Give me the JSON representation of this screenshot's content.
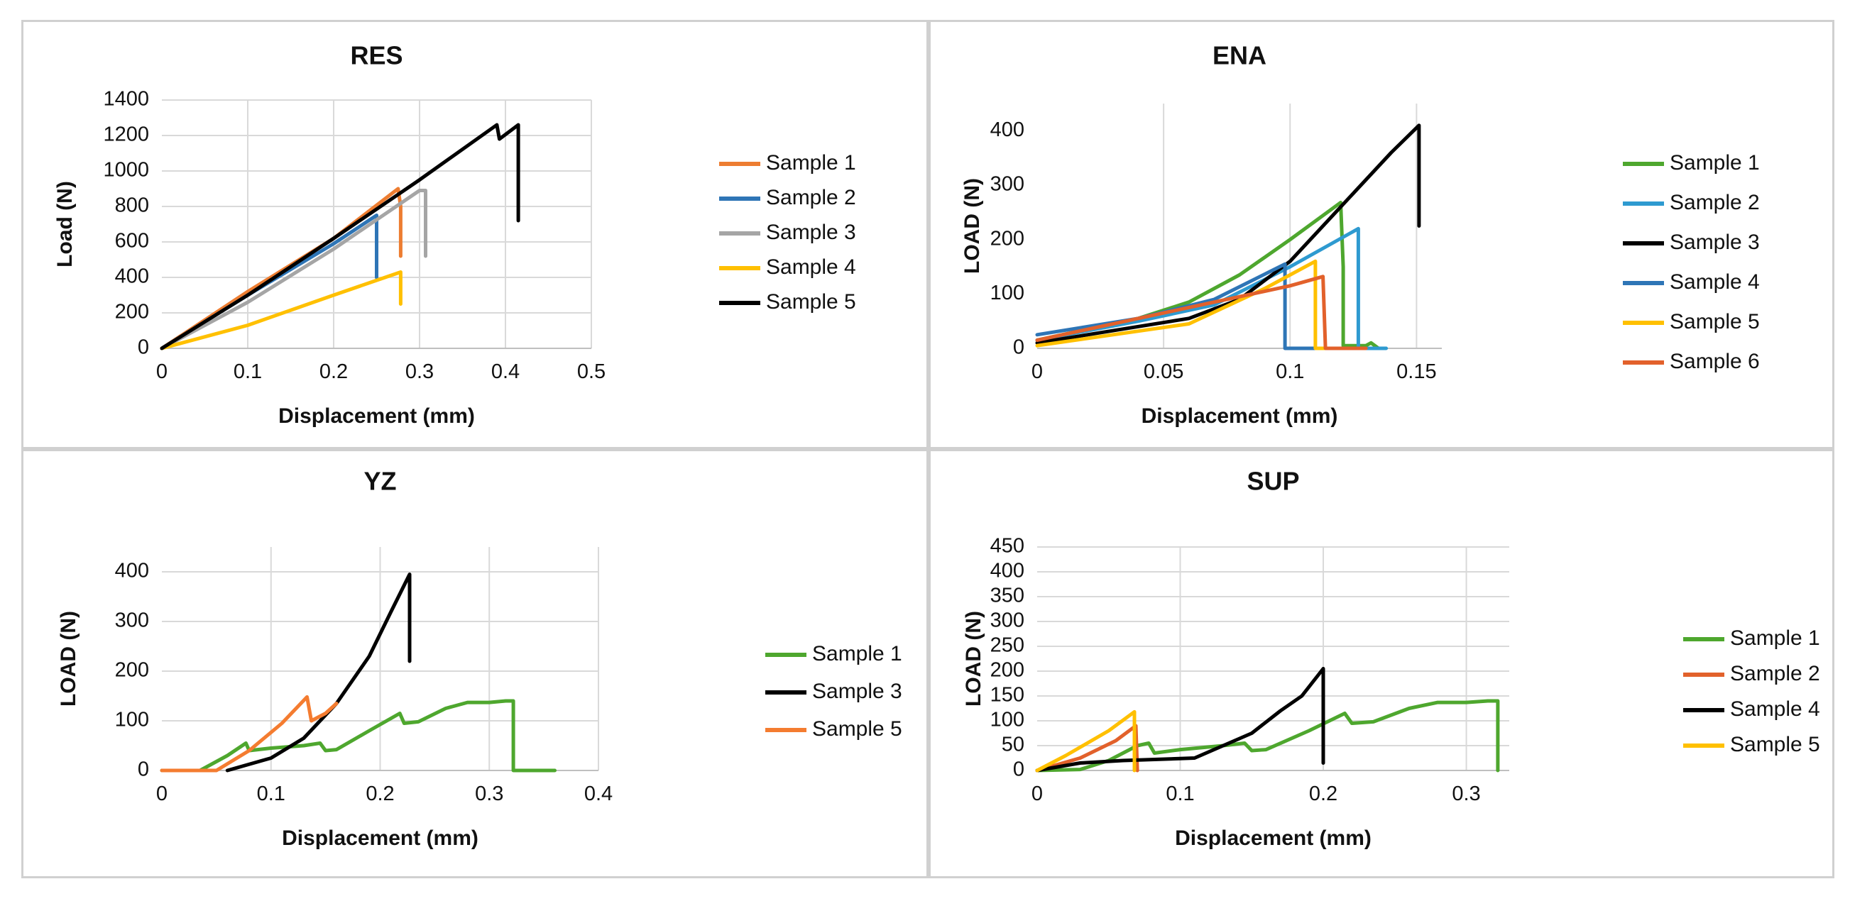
{
  "chart_data": [
    {
      "id": "res",
      "type": "line",
      "title": "RES",
      "xlabel": "Displacement (mm)",
      "ylabel": "Load (N)",
      "xlim": [
        0,
        0.5
      ],
      "ylim": [
        0,
        1400
      ],
      "xticks": [
        0,
        0.1,
        0.2,
        0.3,
        0.4,
        0.5
      ],
      "xtick_labels": [
        "0",
        "0.1",
        "0.2",
        "0.3",
        "0.4",
        "0.5"
      ],
      "yticks": [
        0,
        200,
        400,
        600,
        800,
        1000,
        1200,
        1400
      ],
      "ytick_labels": [
        "0",
        "200",
        "400",
        "600",
        "800",
        "1000",
        "1200",
        "1400"
      ],
      "grid": "vertical-and-horizontal",
      "legend_position": "right",
      "series": [
        {
          "name": "Sample 1",
          "color": "#ED7D31",
          "points": [
            [
              0,
              0
            ],
            [
              0.1,
              320
            ],
            [
              0.2,
              620
            ],
            [
              0.275,
              900
            ],
            [
              0.278,
              800
            ],
            [
              0.278,
              520
            ]
          ]
        },
        {
          "name": "Sample 2",
          "color": "#2E75B6",
          "points": [
            [
              0,
              0
            ],
            [
              0.1,
              300
            ],
            [
              0.2,
              590
            ],
            [
              0.25,
              750
            ],
            [
              0.25,
              400
            ]
          ]
        },
        {
          "name": "Sample 3",
          "color": "#A5A5A5",
          "points": [
            [
              0,
              0
            ],
            [
              0.1,
              260
            ],
            [
              0.2,
              560
            ],
            [
              0.3,
              890
            ],
            [
              0.307,
              890
            ],
            [
              0.307,
              520
            ]
          ]
        },
        {
          "name": "Sample 4",
          "color": "#FFC000",
          "points": [
            [
              0,
              0
            ],
            [
              0.1,
              130
            ],
            [
              0.2,
              300
            ],
            [
              0.278,
              430
            ],
            [
              0.278,
              250
            ]
          ]
        },
        {
          "name": "Sample 5",
          "color": "#000000",
          "points": [
            [
              0,
              0
            ],
            [
              0.1,
              300
            ],
            [
              0.2,
              620
            ],
            [
              0.3,
              950
            ],
            [
              0.39,
              1260
            ],
            [
              0.393,
              1180
            ],
            [
              0.415,
              1260
            ],
            [
              0.415,
              720
            ]
          ]
        }
      ]
    },
    {
      "id": "ena",
      "type": "line",
      "title": "ENA",
      "xlabel": "Displacement (mm)",
      "ylabel": "LOAD (N)",
      "xlim": [
        0,
        0.16
      ],
      "ylim": [
        0,
        450
      ],
      "xticks": [
        0,
        0.05,
        0.1,
        0.15
      ],
      "xtick_labels": [
        "0",
        "0.05",
        "0.1",
        "0.15"
      ],
      "yticks": [
        0,
        100,
        200,
        300,
        400
      ],
      "ytick_labels": [
        "0",
        "100",
        "200",
        "300",
        "400"
      ],
      "grid": "vertical-only",
      "legend_position": "right",
      "series": [
        {
          "name": "Sample 1",
          "color": "#4EA72E",
          "points": [
            [
              0,
              15
            ],
            [
              0.04,
              55
            ],
            [
              0.06,
              85
            ],
            [
              0.08,
              135
            ],
            [
              0.1,
              200
            ],
            [
              0.12,
              268
            ],
            [
              0.121,
              150
            ],
            [
              0.121,
              5
            ],
            [
              0.13,
              5
            ],
            [
              0.132,
              10
            ],
            [
              0.135,
              0
            ]
          ]
        },
        {
          "name": "Sample 2",
          "color": "#2E9AD0",
          "points": [
            [
              0,
              15
            ],
            [
              0.04,
              50
            ],
            [
              0.07,
              80
            ],
            [
              0.1,
              150
            ],
            [
              0.127,
              220
            ],
            [
              0.127,
              0
            ],
            [
              0.138,
              0
            ]
          ]
        },
        {
          "name": "Sample 3",
          "color": "#000000",
          "points": [
            [
              0,
              10
            ],
            [
              0.04,
              40
            ],
            [
              0.06,
              55
            ],
            [
              0.08,
              90
            ],
            [
              0.1,
              160
            ],
            [
              0.12,
              260
            ],
            [
              0.14,
              360
            ],
            [
              0.151,
              410
            ],
            [
              0.151,
              225
            ]
          ]
        },
        {
          "name": "Sample 4",
          "color": "#2E75B6",
          "points": [
            [
              0,
              25
            ],
            [
              0.04,
              55
            ],
            [
              0.07,
              90
            ],
            [
              0.098,
              155
            ],
            [
              0.098,
              0
            ],
            [
              0.11,
              0
            ]
          ]
        },
        {
          "name": "Sample 5",
          "color": "#FFC000",
          "points": [
            [
              0,
              5
            ],
            [
              0.03,
              25
            ],
            [
              0.06,
              45
            ],
            [
              0.09,
              110
            ],
            [
              0.11,
              160
            ],
            [
              0.11,
              0
            ],
            [
              0.123,
              0
            ]
          ]
        },
        {
          "name": "Sample 6",
          "color": "#E2612B",
          "points": [
            [
              0,
              15
            ],
            [
              0.04,
              55
            ],
            [
              0.07,
              85
            ],
            [
              0.1,
              115
            ],
            [
              0.113,
              132
            ],
            [
              0.114,
              0
            ],
            [
              0.13,
              0
            ]
          ]
        }
      ]
    },
    {
      "id": "yz",
      "type": "line",
      "title": "YZ",
      "xlabel": "Displacement (mm)",
      "ylabel": "LOAD (N)",
      "xlim": [
        0,
        0.4
      ],
      "ylim": [
        0,
        450
      ],
      "xticks": [
        0,
        0.1,
        0.2,
        0.3,
        0.4
      ],
      "xtick_labels": [
        "0",
        "0.1",
        "0.2",
        "0.3",
        "0.4"
      ],
      "yticks": [
        0,
        100,
        200,
        300,
        400
      ],
      "ytick_labels": [
        "0",
        "100",
        "200",
        "300",
        "400"
      ],
      "grid": "vertical-and-horizontal",
      "legend_position": "right",
      "series": [
        {
          "name": "Sample 1",
          "color": "#4EA72E",
          "points": [
            [
              0,
              0
            ],
            [
              0.035,
              0
            ],
            [
              0.06,
              30
            ],
            [
              0.077,
              55
            ],
            [
              0.08,
              40
            ],
            [
              0.1,
              45
            ],
            [
              0.13,
              50
            ],
            [
              0.145,
              55
            ],
            [
              0.15,
              40
            ],
            [
              0.16,
              42
            ],
            [
              0.19,
              80
            ],
            [
              0.218,
              115
            ],
            [
              0.222,
              95
            ],
            [
              0.235,
              98
            ],
            [
              0.26,
              125
            ],
            [
              0.28,
              137
            ],
            [
              0.3,
              137
            ],
            [
              0.315,
              140
            ],
            [
              0.322,
              140
            ],
            [
              0.322,
              0
            ],
            [
              0.36,
              0
            ]
          ]
        },
        {
          "name": "Sample 3",
          "color": "#000000",
          "points": [
            [
              0.06,
              0
            ],
            [
              0.1,
              25
            ],
            [
              0.13,
              65
            ],
            [
              0.16,
              135
            ],
            [
              0.19,
              230
            ],
            [
              0.21,
              320
            ],
            [
              0.227,
              395
            ],
            [
              0.227,
              220
            ]
          ]
        },
        {
          "name": "Sample 5",
          "color": "#F47C30",
          "points": [
            [
              0,
              0
            ],
            [
              0.05,
              0
            ],
            [
              0.08,
              40
            ],
            [
              0.11,
              95
            ],
            [
              0.133,
              148
            ],
            [
              0.137,
              100
            ],
            [
              0.15,
              115
            ],
            [
              0.16,
              135
            ]
          ]
        }
      ]
    },
    {
      "id": "sup",
      "type": "line",
      "title": "SUP",
      "xlabel": "Displacement (mm)",
      "ylabel": "LOAD (N)",
      "xlim": [
        0,
        0.33
      ],
      "ylim": [
        0,
        450
      ],
      "xticks": [
        0,
        0.1,
        0.2,
        0.3
      ],
      "xtick_labels": [
        "0",
        "0.1",
        "0.2",
        "0.3"
      ],
      "yticks": [
        0,
        50,
        100,
        150,
        200,
        250,
        300,
        350,
        400,
        450
      ],
      "ytick_labels": [
        "0",
        "50",
        "100",
        "150",
        "200",
        "250",
        "300",
        "350",
        "400",
        "450"
      ],
      "grid": "vertical-and-horizontal",
      "legend_position": "right",
      "series": [
        {
          "name": "Sample 1",
          "color": "#4EA72E",
          "points": [
            [
              0,
              0
            ],
            [
              0.03,
              2
            ],
            [
              0.05,
              20
            ],
            [
              0.07,
              50
            ],
            [
              0.078,
              55
            ],
            [
              0.082,
              35
            ],
            [
              0.1,
              42
            ],
            [
              0.13,
              50
            ],
            [
              0.145,
              55
            ],
            [
              0.15,
              40
            ],
            [
              0.16,
              42
            ],
            [
              0.19,
              80
            ],
            [
              0.215,
              115
            ],
            [
              0.22,
              95
            ],
            [
              0.235,
              98
            ],
            [
              0.26,
              125
            ],
            [
              0.28,
              137
            ],
            [
              0.3,
              137
            ],
            [
              0.315,
              140
            ],
            [
              0.322,
              140
            ],
            [
              0.322,
              0
            ]
          ]
        },
        {
          "name": "Sample 2",
          "color": "#E2612B",
          "points": [
            [
              0,
              0
            ],
            [
              0.03,
              25
            ],
            [
              0.055,
              60
            ],
            [
              0.069,
              90
            ],
            [
              0.07,
              0
            ]
          ]
        },
        {
          "name": "Sample 4",
          "color": "#000000",
          "points": [
            [
              0,
              0
            ],
            [
              0.03,
              15
            ],
            [
              0.06,
              20
            ],
            [
              0.11,
              25
            ],
            [
              0.13,
              50
            ],
            [
              0.15,
              75
            ],
            [
              0.17,
              120
            ],
            [
              0.185,
              150
            ],
            [
              0.2,
              205
            ],
            [
              0.2,
              15
            ]
          ]
        },
        {
          "name": "Sample 5",
          "color": "#FFC000",
          "points": [
            [
              0,
              0
            ],
            [
              0.02,
              30
            ],
            [
              0.05,
              80
            ],
            [
              0.068,
              118
            ],
            [
              0.068,
              0
            ]
          ]
        }
      ]
    }
  ]
}
